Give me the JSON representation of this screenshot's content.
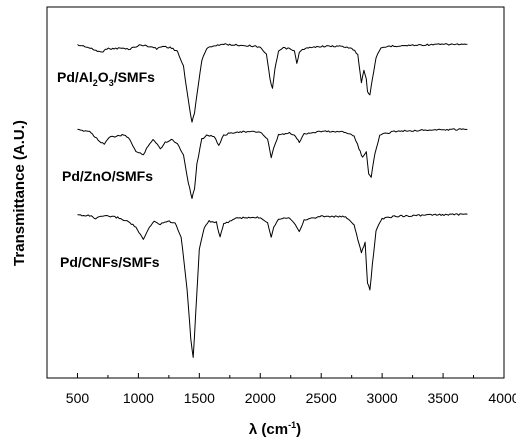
{
  "chart_data": {
    "type": "line",
    "xlabel": "λ (cm",
    "xlabel_sup": "-1",
    "xlabel_close": ")",
    "ylabel": "Transmittance (A.U.)",
    "xlim": [
      250,
      4000
    ],
    "xticks": [
      500,
      1000,
      1500,
      2000,
      2500,
      3000,
      3500,
      4000
    ],
    "y_ticks_shown": false,
    "grid": false,
    "legend": "none (labels placed next to each trace)",
    "series": [
      {
        "name": "Pd/Al2O3/SMFs",
        "label_parts": [
          "Pd/Al",
          "2",
          "O",
          "3",
          "/SMFs"
        ],
        "offset": 2,
        "points": [
          [
            500,
            0.0
          ],
          [
            560,
            0.02
          ],
          [
            640,
            0.08
          ],
          [
            700,
            0.12
          ],
          [
            730,
            0.06
          ],
          [
            790,
            0.06
          ],
          [
            860,
            0.05
          ],
          [
            920,
            0.07
          ],
          [
            970,
            0.03
          ],
          [
            1020,
            0.0
          ],
          [
            1090,
            0.02
          ],
          [
            1150,
            0.06
          ],
          [
            1200,
            0.02
          ],
          [
            1260,
            0.04
          ],
          [
            1320,
            0.1
          ],
          [
            1370,
            0.35
          ],
          [
            1410,
            0.9
          ],
          [
            1440,
            1.25
          ],
          [
            1460,
            1.1
          ],
          [
            1480,
            0.8
          ],
          [
            1520,
            0.25
          ],
          [
            1560,
            0.06
          ],
          [
            1600,
            0.02
          ],
          [
            1650,
            0.0
          ],
          [
            1700,
            -0.01
          ],
          [
            1800,
            0.0
          ],
          [
            1900,
            0.01
          ],
          [
            2000,
            0.03
          ],
          [
            2050,
            0.15
          ],
          [
            2080,
            0.55
          ],
          [
            2100,
            0.7
          ],
          [
            2120,
            0.4
          ],
          [
            2150,
            0.1
          ],
          [
            2190,
            0.05
          ],
          [
            2240,
            0.06
          ],
          [
            2280,
            0.1
          ],
          [
            2300,
            0.3
          ],
          [
            2320,
            0.12
          ],
          [
            2360,
            0.06
          ],
          [
            2500,
            0.02
          ],
          [
            2650,
            0.02
          ],
          [
            2750,
            0.05
          ],
          [
            2800,
            0.15
          ],
          [
            2830,
            0.6
          ],
          [
            2850,
            0.4
          ],
          [
            2870,
            0.55
          ],
          [
            2880,
            0.75
          ],
          [
            2900,
            0.8
          ],
          [
            2920,
            0.55
          ],
          [
            2950,
            0.2
          ],
          [
            2990,
            0.06
          ],
          [
            3050,
            0.02
          ],
          [
            3300,
            0.0
          ],
          [
            3500,
            -0.01
          ],
          [
            3700,
            -0.01
          ]
        ]
      },
      {
        "name": "Pd/ZnO/SMFs",
        "offset": 1,
        "points": [
          [
            500,
            0.0
          ],
          [
            600,
            0.02
          ],
          [
            680,
            0.18
          ],
          [
            720,
            0.22
          ],
          [
            760,
            0.12
          ],
          [
            820,
            0.1
          ],
          [
            880,
            0.08
          ],
          [
            930,
            0.15
          ],
          [
            980,
            0.35
          ],
          [
            1040,
            0.4
          ],
          [
            1080,
            0.25
          ],
          [
            1120,
            0.15
          ],
          [
            1180,
            0.3
          ],
          [
            1220,
            0.2
          ],
          [
            1270,
            0.15
          ],
          [
            1320,
            0.22
          ],
          [
            1370,
            0.4
          ],
          [
            1410,
            0.85
          ],
          [
            1440,
            1.1
          ],
          [
            1460,
            0.95
          ],
          [
            1480,
            0.55
          ],
          [
            1520,
            0.15
          ],
          [
            1560,
            0.08
          ],
          [
            1620,
            0.1
          ],
          [
            1660,
            0.25
          ],
          [
            1700,
            0.08
          ],
          [
            1800,
            0.03
          ],
          [
            2000,
            0.03
          ],
          [
            2060,
            0.15
          ],
          [
            2090,
            0.45
          ],
          [
            2110,
            0.3
          ],
          [
            2150,
            0.08
          ],
          [
            2240,
            0.05
          ],
          [
            2290,
            0.1
          ],
          [
            2320,
            0.2
          ],
          [
            2360,
            0.06
          ],
          [
            2500,
            0.02
          ],
          [
            2700,
            0.03
          ],
          [
            2770,
            0.1
          ],
          [
            2810,
            0.3
          ],
          [
            2840,
            0.45
          ],
          [
            2870,
            0.35
          ],
          [
            2890,
            0.7
          ],
          [
            2910,
            0.75
          ],
          [
            2940,
            0.4
          ],
          [
            2980,
            0.08
          ],
          [
            3100,
            0.02
          ],
          [
            3400,
            0.0
          ],
          [
            3700,
            -0.01
          ]
        ]
      },
      {
        "name": "Pd/CNFs/SMFs",
        "offset": 0,
        "points": [
          [
            500,
            0.0
          ],
          [
            600,
            0.01
          ],
          [
            650,
            0.06
          ],
          [
            700,
            0.02
          ],
          [
            760,
            0.02
          ],
          [
            830,
            0.04
          ],
          [
            880,
            0.08
          ],
          [
            930,
            0.12
          ],
          [
            980,
            0.2
          ],
          [
            1040,
            0.4
          ],
          [
            1090,
            0.2
          ],
          [
            1130,
            0.1
          ],
          [
            1180,
            0.15
          ],
          [
            1230,
            0.1
          ],
          [
            1300,
            0.12
          ],
          [
            1350,
            0.35
          ],
          [
            1400,
            1.2
          ],
          [
            1430,
            2.0
          ],
          [
            1450,
            2.3
          ],
          [
            1470,
            1.6
          ],
          [
            1500,
            0.55
          ],
          [
            1540,
            0.2
          ],
          [
            1580,
            0.1
          ],
          [
            1640,
            0.12
          ],
          [
            1670,
            0.35
          ],
          [
            1700,
            0.15
          ],
          [
            1800,
            0.05
          ],
          [
            2000,
            0.04
          ],
          [
            2060,
            0.12
          ],
          [
            2090,
            0.35
          ],
          [
            2110,
            0.2
          ],
          [
            2150,
            0.06
          ],
          [
            2240,
            0.04
          ],
          [
            2290,
            0.15
          ],
          [
            2320,
            0.28
          ],
          [
            2360,
            0.08
          ],
          [
            2500,
            0.02
          ],
          [
            2700,
            0.03
          ],
          [
            2770,
            0.15
          ],
          [
            2800,
            0.4
          ],
          [
            2830,
            0.6
          ],
          [
            2860,
            0.45
          ],
          [
            2880,
            1.1
          ],
          [
            2900,
            1.2
          ],
          [
            2920,
            0.8
          ],
          [
            2950,
            0.25
          ],
          [
            3000,
            0.06
          ],
          [
            3100,
            0.02
          ],
          [
            3400,
            0.0
          ],
          [
            3700,
            -0.01
          ]
        ]
      }
    ]
  }
}
